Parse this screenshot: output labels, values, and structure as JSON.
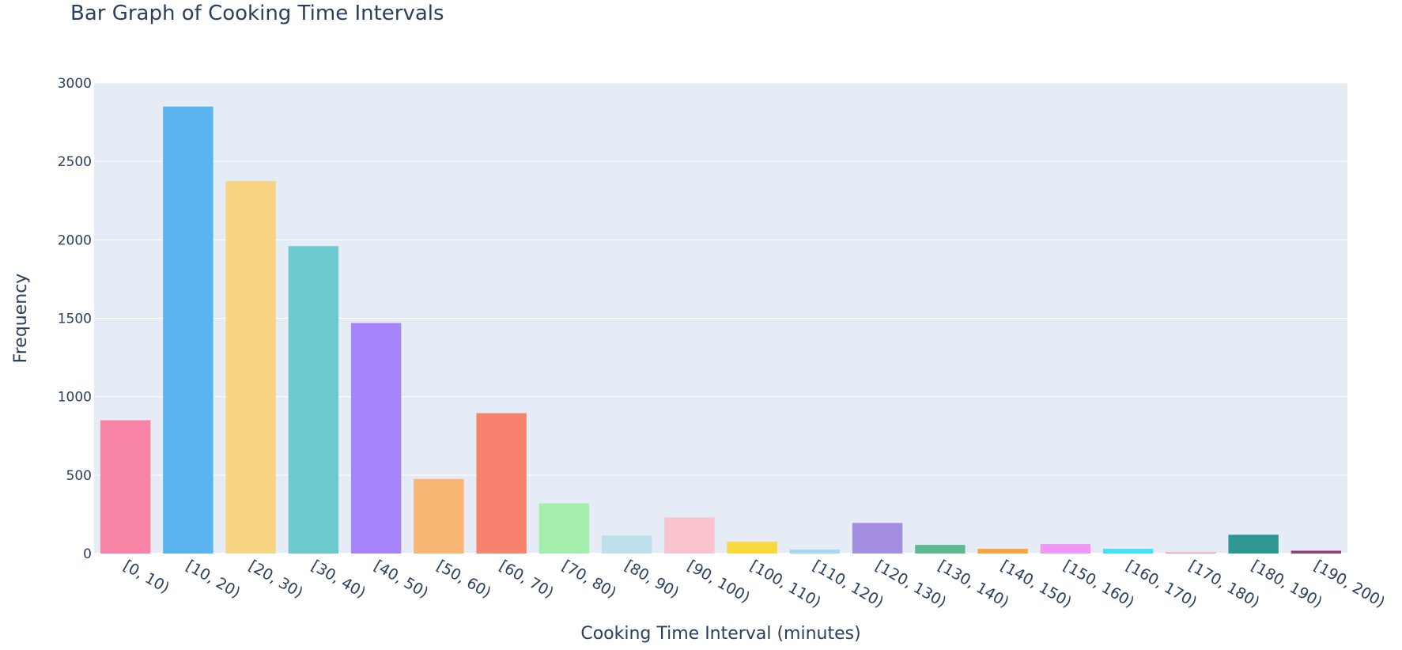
{
  "chart_data": {
    "type": "bar",
    "title": "Bar Graph of Cooking Time Intervals",
    "xlabel": "Cooking Time Interval (minutes)",
    "ylabel": "Frequency",
    "ylim": [
      0,
      3000
    ],
    "yticks": [
      0,
      500,
      1000,
      1500,
      2000,
      2500,
      3000
    ],
    "grid": true,
    "categories": [
      "[0, 10)",
      "[10, 20)",
      "[20, 30)",
      "[30, 40)",
      "[40, 50)",
      "[50, 60)",
      "[60, 70)",
      "[70, 80)",
      "[80, 90)",
      "[90, 100)",
      "[100, 110)",
      "[110, 120)",
      "[120, 130)",
      "[130, 140)",
      "[140, 150)",
      "[150, 160)",
      "[160, 170)",
      "[170, 180)",
      "[180, 190)",
      "[190, 200)"
    ],
    "values": [
      850,
      2850,
      2375,
      1960,
      1470,
      475,
      895,
      320,
      115,
      230,
      75,
      25,
      195,
      55,
      30,
      60,
      30,
      8,
      120,
      18
    ],
    "colors": [
      "#f783a6",
      "#5ab4ef",
      "#f8d582",
      "#6cc9cd",
      "#a684f9",
      "#f8b574",
      "#f7836f",
      "#a3eeac",
      "#bde0ec",
      "#f9c3cd",
      "#f9d83e",
      "#a3d8ef",
      "#a48ee2",
      "#5db98f",
      "#f9a43e",
      "#ee97f5",
      "#40e4f8",
      "#f9a0a8",
      "#2f9694",
      "#943f73"
    ]
  }
}
